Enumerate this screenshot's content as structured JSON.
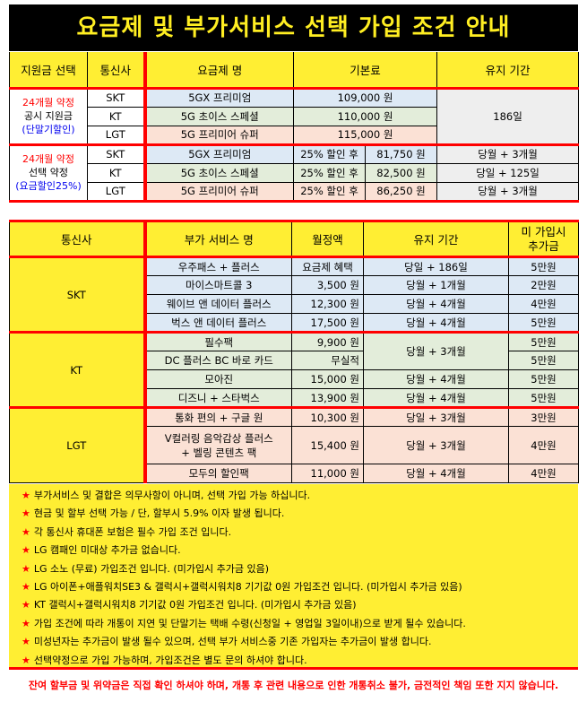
{
  "title": "요금제 및 부가서비스 선택 가입 조건 안내",
  "plan_table": {
    "headers": [
      "지원금 선택",
      "통신사",
      "요금제 명",
      "기본료",
      "유지 기간"
    ],
    "group1": {
      "line1": "24개월 약정",
      "line2": "공시 지원금",
      "line3": "(단말기할인)",
      "period": "186일",
      "rows": [
        {
          "carrier": "SKT",
          "plan": "5GX 프리미엄",
          "fee": "109,000 원"
        },
        {
          "carrier": "KT",
          "plan": "5G 초이스 스페셜",
          "fee": "110,000 원"
        },
        {
          "carrier": "LGT",
          "plan": "5G 프리미어 슈퍼",
          "fee": "115,000 원"
        }
      ]
    },
    "group2": {
      "line1": "24개월 약정",
      "line2": "선택 약정",
      "line3": "(요금할인25%)",
      "rows": [
        {
          "carrier": "SKT",
          "plan": "5GX 프리미엄",
          "discount": "25% 할인 후",
          "fee": "81,750 원",
          "period": "당월 + 3개월"
        },
        {
          "carrier": "KT",
          "plan": "5G 초이스 스페셜",
          "discount": "25% 할인 후",
          "fee": "82,500 원",
          "period": "당일 + 125일"
        },
        {
          "carrier": "LGT",
          "plan": "5G 프리미어 슈퍼",
          "discount": "25% 할인 후",
          "fee": "86,250 원",
          "period": "당월 + 3개월"
        }
      ]
    }
  },
  "service_table": {
    "headers": [
      "통신사",
      "부가 서비스 명",
      "월정액",
      "유지 기간",
      "미 가입시\n추가금"
    ],
    "header_extra_line1": "미 가입시",
    "header_extra_line2": "추가금",
    "skt": {
      "carrier": "SKT",
      "rows": [
        {
          "name": "우주패스 + 플러스",
          "price": "요금제 혜택",
          "period": "당일 + 186일",
          "extra": "5만원"
        },
        {
          "name": "마이스마트콜 3",
          "price": "3,500 원",
          "period": "당월 + 1개월",
          "extra": "2만원"
        },
        {
          "name": "웨이브 앤 데이터 플러스",
          "price": "12,300 원",
          "period": "당월 + 4개월",
          "extra": "4만원"
        },
        {
          "name": "벅스 앤 데이터 플러스",
          "price": "17,500 원",
          "period": "당월 + 4개월",
          "extra": "5만원"
        }
      ]
    },
    "kt": {
      "carrier": "KT",
      "shared_period": "당월 + 3개월",
      "rows": [
        {
          "name": "필수팩",
          "price": "9,900 원",
          "extra": "5만원"
        },
        {
          "name": "DC 플러스 BC 바로 카드",
          "price": "무실적",
          "extra": "5만원"
        },
        {
          "name": "모아진",
          "price": "15,000 원",
          "period": "당월 + 4개월",
          "extra": "5만원"
        },
        {
          "name": "디즈니 + 스타벅스",
          "price": "13,900 원",
          "period": "당월 + 4개월",
          "extra": "5만원"
        }
      ]
    },
    "lgt": {
      "carrier": "LGT",
      "rows": [
        {
          "name": "통화 편의 + 구글 원",
          "price": "10,300 원",
          "period": "당일 + 3개월",
          "extra": "3만원"
        },
        {
          "name": "V컬러링 음악감상 플러스",
          "name2": "+ 벨링 콘텐츠 팩",
          "price": "15,400 원",
          "period": "당월 + 3개월",
          "extra": "4만원"
        },
        {
          "name": "모두의 할인팩",
          "price": "11,000 원",
          "period": "당월 + 4개월",
          "extra": "4만원"
        }
      ]
    }
  },
  "notes": [
    "부가서비스 및 결합은 의무사항이 아니며, 선택 가입 가능 하십니다.",
    "현금 및 할부 선택 가능 / 단, 할부시 5.9% 이자 발생 됩니다.",
    "각 통신사 휴대폰 보험은 필수 가입 조건  입니다.",
    "LG 캠패인 미대상 추가금 없습니다.",
    "LG 소노 (무료) 가입조건 입니다. (미가입시 추가금 있음)",
    "LG 아이폰+애플워치SE3 & 갤럭시+갤럭시워치8 기기값 0원 가입조건 입니다. (미가입시 추가금 있음)",
    "KT 갤럭시+갤럭시워치8 기기값 0원 가입조건 입니다. (미가입시 추가금 있음)",
    "가입 조건에 따라 개통이 지연 및 단말기는 택배 수령(신청일 + 영업일 3일이내)으로 받게 될수 있습니다.",
    "미성년자는 추가금이 발생 될수 있으며, 선택 부가 서비스중 기존 가입자는 추가금이 발생 합니다.",
    "선택약정으로 가입 가능하며, 가입조건은 별도 문의 하셔야 합니다."
  ],
  "note_icon": "star-icon",
  "footer": "잔여 할부금 및 위약금은 직접 확인 하셔야 하며, 개통 후 관련 내용으로 인한 개통취소 불가, 금전적인 책임 또한 지지 않습니다.",
  "colors": {
    "yellow": "#ffee33",
    "red": "#ff0000",
    "skt": "#dde9f5",
    "kt": "#e3edda",
    "lgt": "#fbe1d5"
  }
}
